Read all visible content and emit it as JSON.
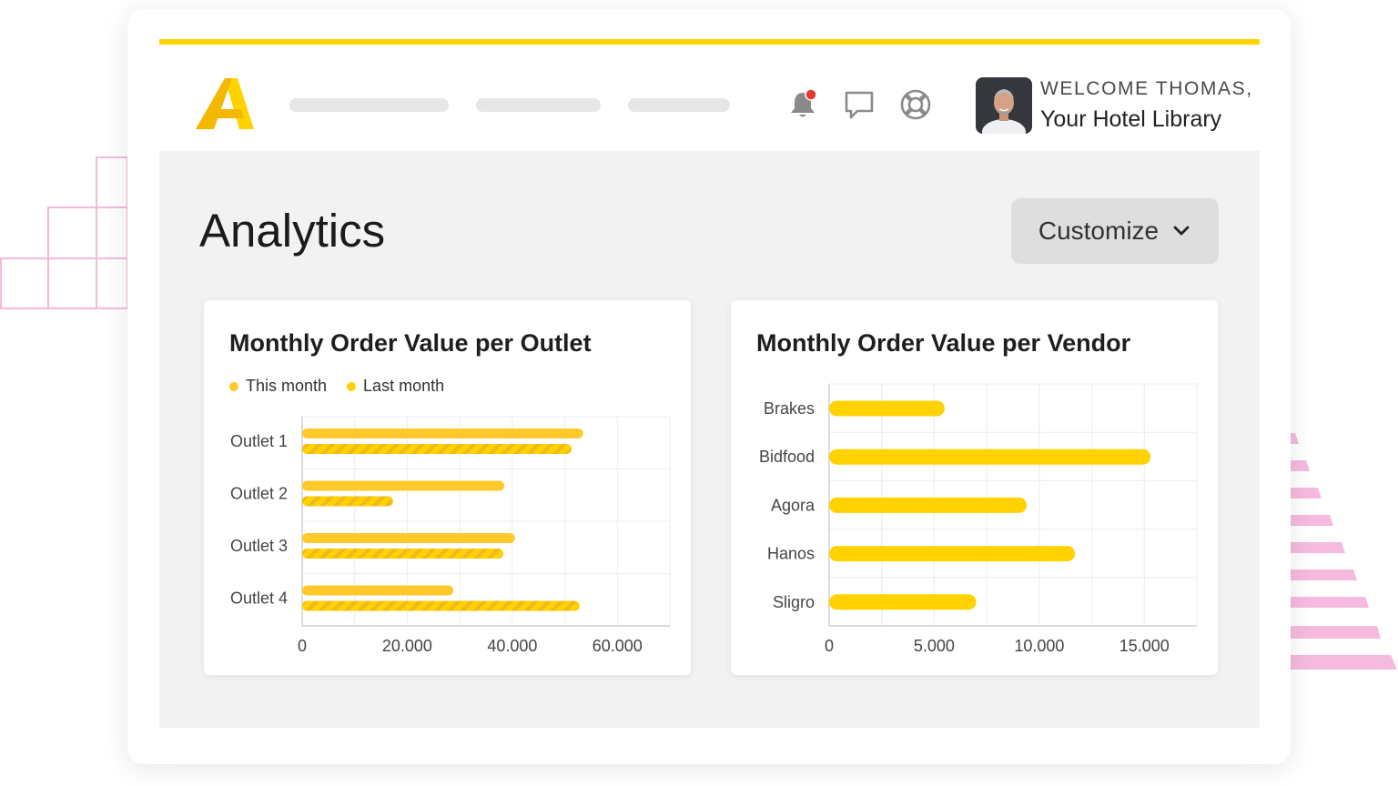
{
  "header": {
    "welcome": "WELCOME THOMAS,",
    "library": "Your Hotel Library",
    "icons": [
      "bell-icon",
      "chat-icon",
      "lifebuoy-icon"
    ],
    "notification_color": "#E53935"
  },
  "page": {
    "title": "Analytics",
    "customize_label": "Customize"
  },
  "colors": {
    "accent": "#FFD200",
    "this_month": "#FFC929",
    "last_month": "#FFD200",
    "last_month_stripe": "#F3B81A"
  },
  "outlet_card": {
    "title": "Monthly Order Value per Outlet",
    "legend": [
      "This month",
      "Last month"
    ]
  },
  "vendor_card": {
    "title": "Monthly Order Value per Vendor"
  },
  "chart_data": [
    {
      "type": "bar",
      "orientation": "horizontal",
      "title": "Monthly Order Value per Outlet",
      "categories": [
        "Outlet 1",
        "Outlet 2",
        "Outlet 3",
        "Outlet 4"
      ],
      "series": [
        {
          "name": "This month",
          "values": [
            53500,
            38500,
            40500,
            28800
          ]
        },
        {
          "name": "Last month",
          "values": [
            51300,
            17300,
            38300,
            52800
          ]
        }
      ],
      "xlim": [
        0,
        70000
      ],
      "xticks": [
        0,
        20000,
        40000,
        60000
      ],
      "xtick_labels": [
        "0",
        "20.000",
        "40.000",
        "60.000"
      ],
      "grid": true,
      "legend": "top-left"
    },
    {
      "type": "bar",
      "orientation": "horizontal",
      "title": "Monthly Order Value per Vendor",
      "categories": [
        "Brakes",
        "Bidfood",
        "Agora",
        "Hanos",
        "Sligro"
      ],
      "series": [
        {
          "values": [
            5500,
            15300,
            9400,
            11700,
            7000
          ]
        }
      ],
      "xlim": [
        0,
        17500
      ],
      "xticks": [
        0,
        5000,
        10000,
        15000
      ],
      "xtick_labels": [
        "0",
        "5.000",
        "10.000",
        "15.000"
      ],
      "grid": true
    }
  ]
}
